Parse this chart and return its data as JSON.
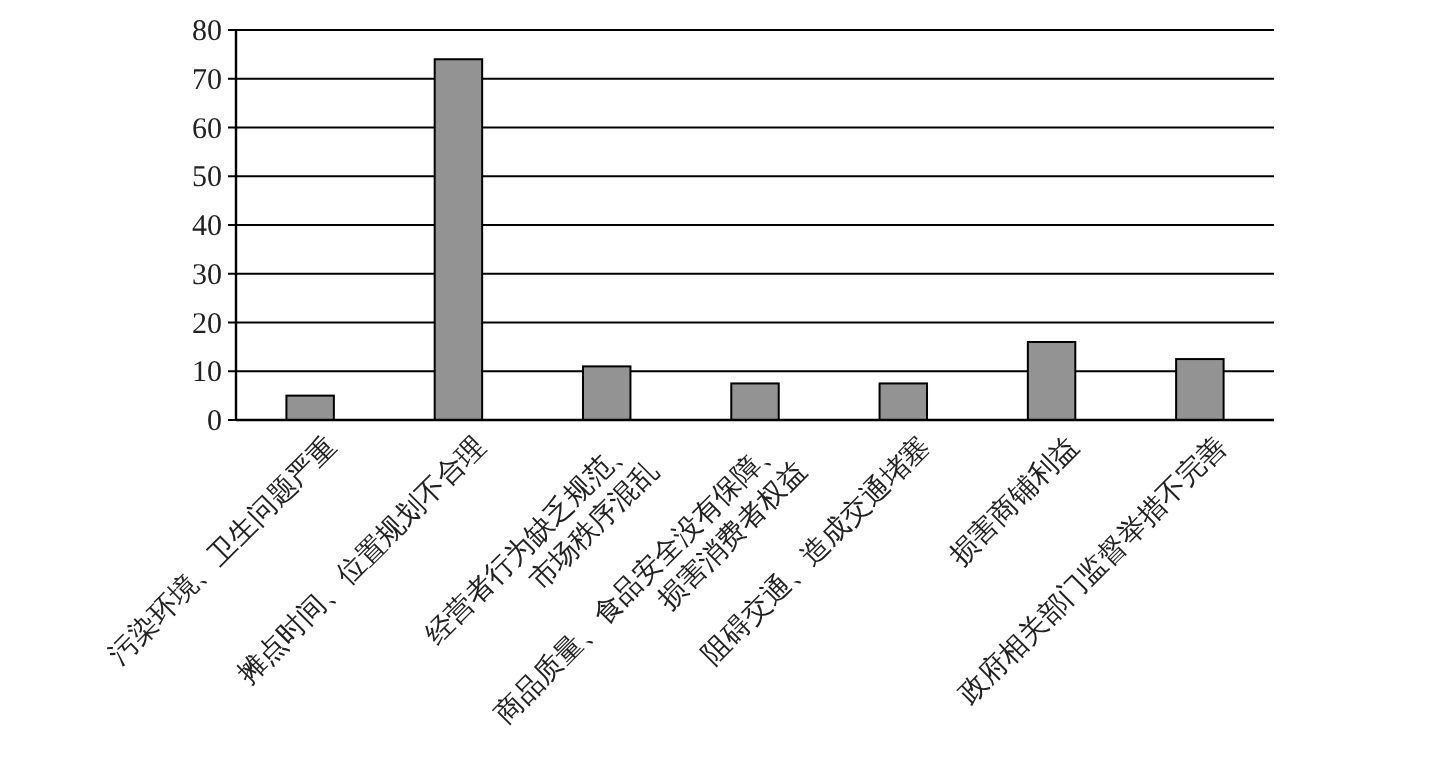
{
  "chart_data": {
    "type": "bar",
    "categories": [
      "污染环境、卫生问题严重",
      "摊点时间、位置规划不合理",
      "经营者行为缺乏规范、\n市场秩序混乱",
      "商品质量、食品安全没有保障、\n损害消费者权益",
      "阻碍交通、造成交通堵塞",
      "损害商铺利益",
      "政府相关部门监督举措不完善"
    ],
    "values": [
      5,
      74,
      11,
      7.5,
      7.5,
      16,
      12.5
    ],
    "color": "#939393",
    "ylim": [
      0,
      80
    ],
    "yticks": [
      0,
      10,
      20,
      30,
      40,
      50,
      60,
      70,
      80
    ],
    "grid": "y"
  }
}
